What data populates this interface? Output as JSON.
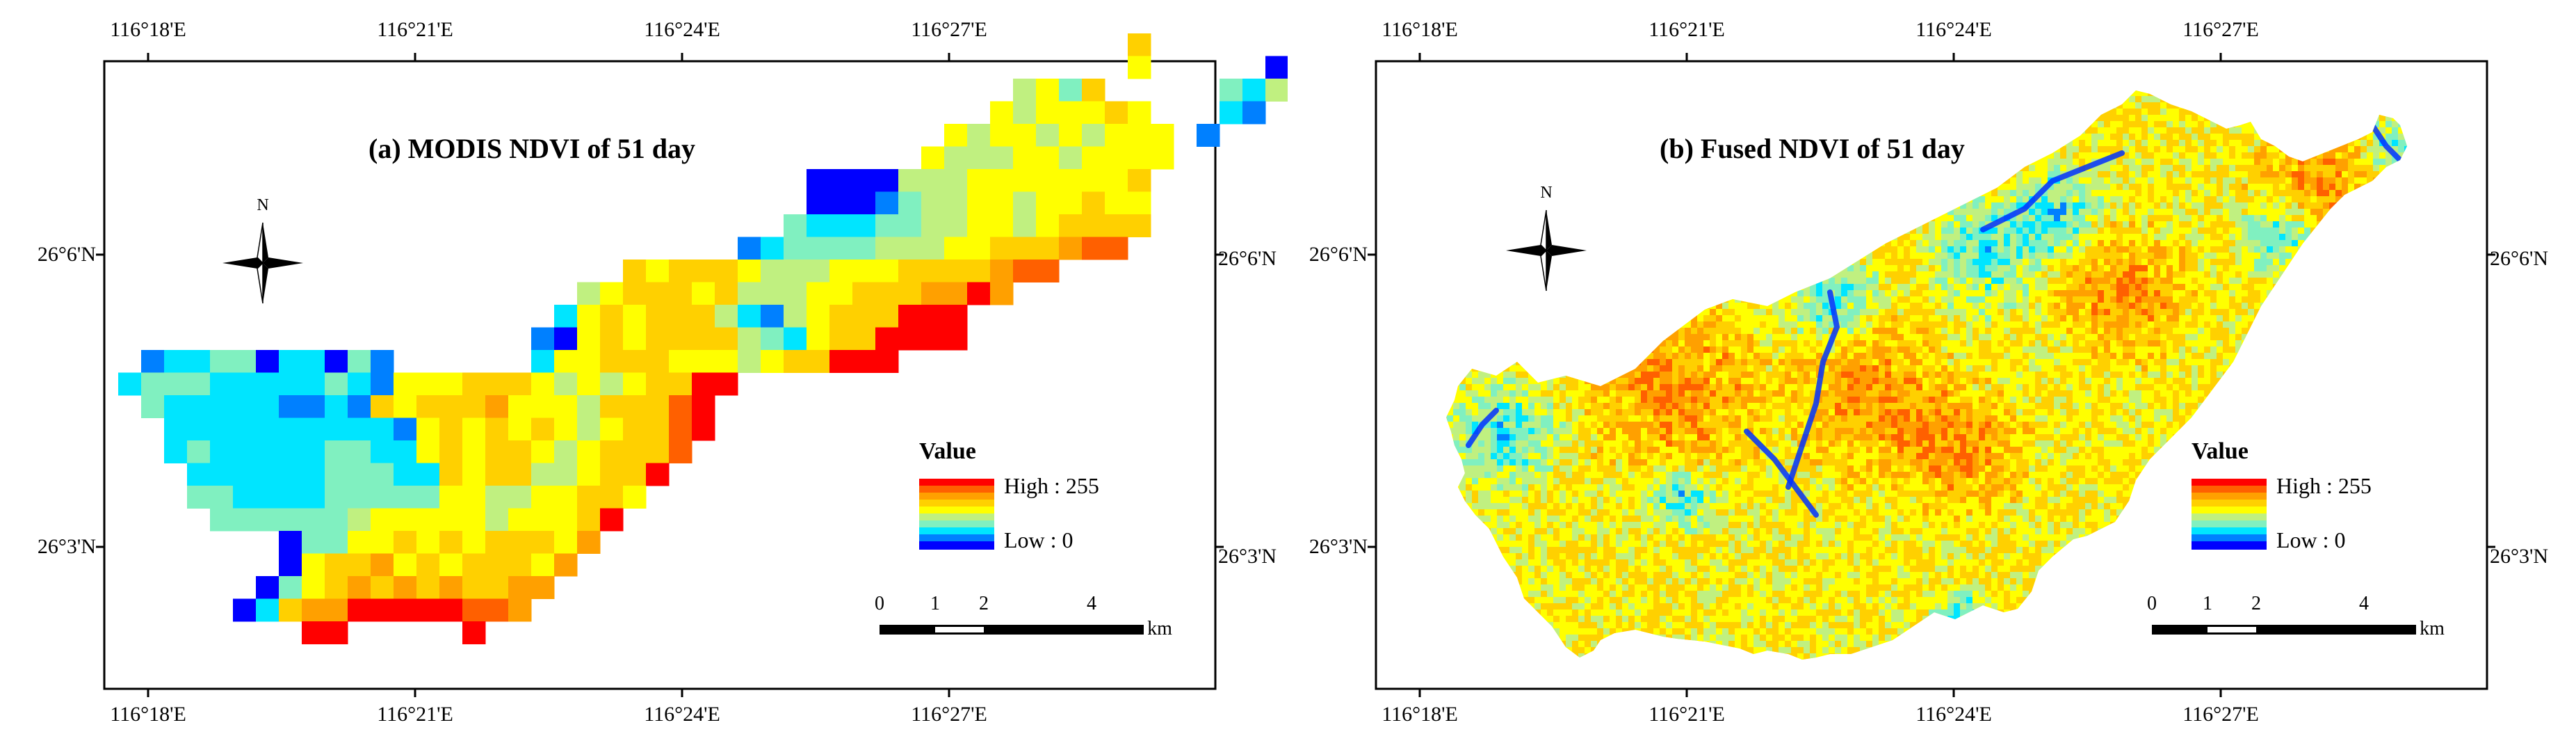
{
  "colors": {
    "ramp": [
      "#0000ff",
      "#0080ff",
      "#00e5ff",
      "#80f0c0",
      "#c0f080",
      "#ffff00",
      "#ffd000",
      "#ffa000",
      "#ff6000",
      "#ff0000"
    ],
    "frame": "#000000",
    "background": "#ffffff"
  },
  "panels": [
    {
      "title": "(a)  MODIS NDVI of 51 day",
      "lon_labels": [
        "116°18'E",
        "116°21'E",
        "116°24'E",
        "116°27'E"
      ],
      "lat_labels": [
        "26°6'N",
        "26°3'N"
      ],
      "north_label": "N",
      "legend": {
        "title": "Value",
        "high": "High : 255",
        "low": "Low : 0"
      },
      "scale": {
        "ticks": [
          "0",
          "1",
          "2",
          "4"
        ],
        "unit": "km"
      },
      "raster_kind": "pixelated"
    },
    {
      "title": "(b)  Fused NDVI of 51 day",
      "lon_labels": [
        "116°18'E",
        "116°21'E",
        "116°24'E",
        "116°27'E"
      ],
      "lat_labels": [
        "26°6'N",
        "26°3'N"
      ],
      "north_label": "N",
      "legend": {
        "title": "Value",
        "high": "High : 255",
        "low": "Low : 0"
      },
      "scale": {
        "ticks": [
          "0",
          "1",
          "2",
          "4"
        ],
        "unit": "km"
      },
      "raster_kind": "smooth"
    }
  ]
}
